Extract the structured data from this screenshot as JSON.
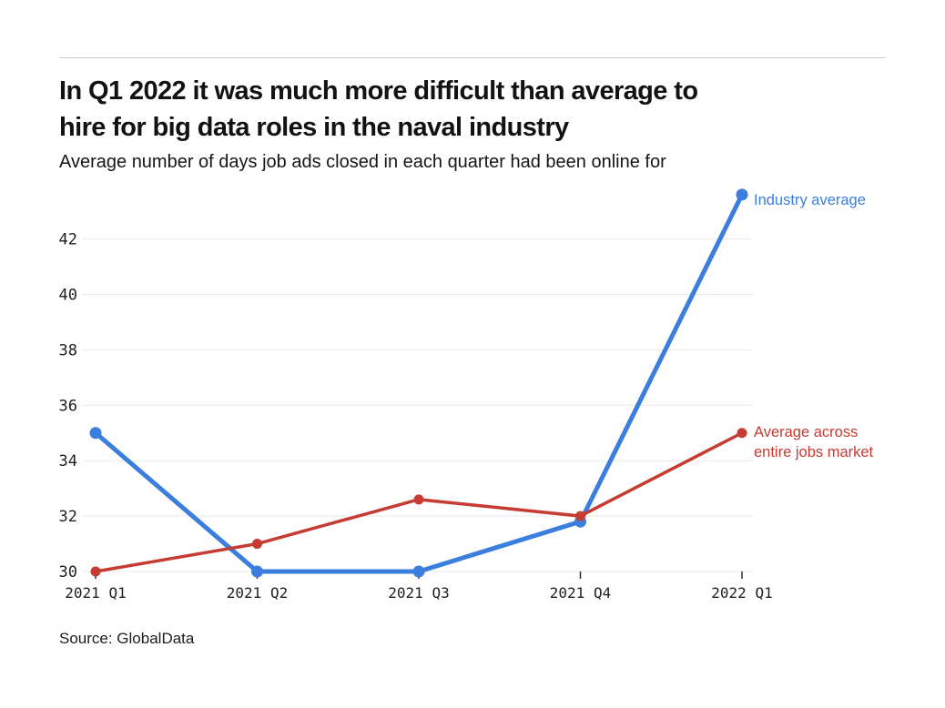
{
  "page": {
    "background": "#ffffff"
  },
  "header": {
    "divider_color": "#cbcbcb",
    "title_lines": [
      "In Q1 2022 it was much more difficult than average to",
      "hire for big data roles in the naval industry"
    ],
    "subtitle": "Average number of days job ads closed in each quarter had been online for"
  },
  "footer": {
    "source": "Source: GlobalData"
  },
  "chart_data": {
    "type": "line",
    "title": "In Q1 2022 it was much more difficult than average to hire for big data roles in the naval industry",
    "subtitle": "Average number of days job ads closed in each quarter had been online for",
    "categories": [
      "2021 Q1",
      "2021 Q2",
      "2021 Q3",
      "2021 Q4",
      "2022 Q1"
    ],
    "series": [
      {
        "name": "Industry average",
        "color": "#3b7edd",
        "values": [
          35,
          30,
          30,
          31.8,
          43.6
        ],
        "legend_lines": [
          "Industry average"
        ]
      },
      {
        "name": "Average across entire jobs market",
        "color": "#c63b32",
        "values": [
          30,
          31,
          32.6,
          32,
          35
        ],
        "legend_lines": [
          "Average across",
          "entire jobs market"
        ]
      }
    ],
    "yticks": [
      30,
      32,
      34,
      36,
      38,
      40,
      42
    ],
    "ylim": [
      30,
      44
    ],
    "xlabel": "",
    "ylabel": "",
    "grid": true,
    "gridline_color": "#e9e9e9",
    "tick_color": "#2b2b2b",
    "axis_label_color": "#1f1f1f",
    "legend_position": "right-of-last-point"
  }
}
